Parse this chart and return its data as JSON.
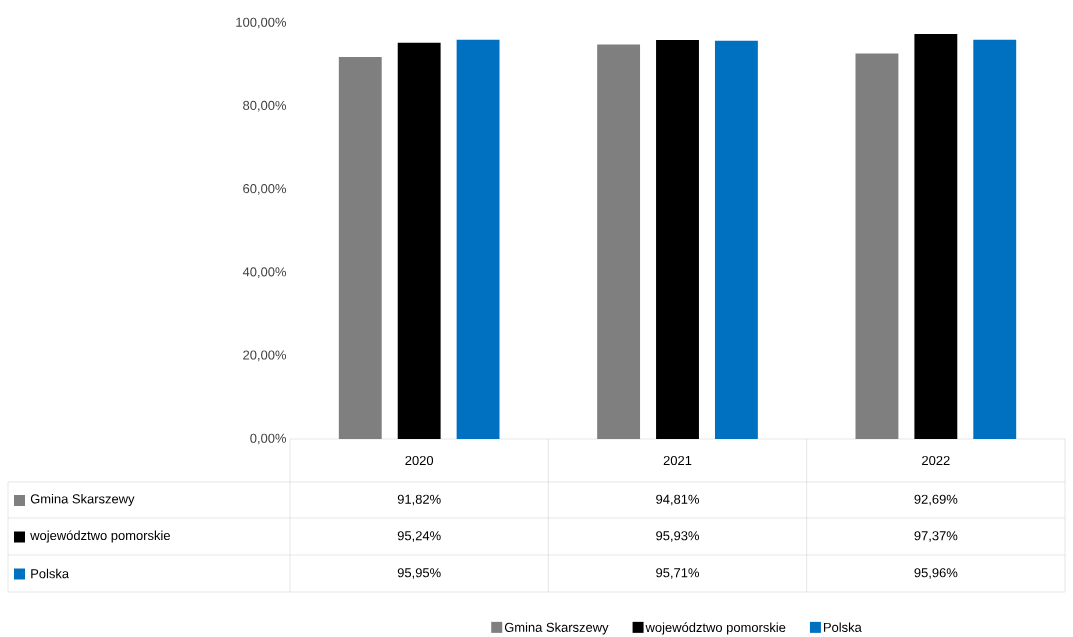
{
  "chart_data": {
    "type": "bar",
    "categories": [
      "2020",
      "2021",
      "2022"
    ],
    "series": [
      {
        "name": "Gmina Skarszewy",
        "color": "#7f7f7f",
        "values": [
          91.82,
          94.81,
          92.69
        ],
        "value_labels": [
          "91,82%",
          "94,81%",
          "92,69%"
        ]
      },
      {
        "name": "województwo pomorskie",
        "color": "#000000",
        "values": [
          95.24,
          95.93,
          97.37
        ],
        "value_labels": [
          "95,24%",
          "95,93%",
          "97,37%"
        ]
      },
      {
        "name": "Polska",
        "color": "#0070c0",
        "values": [
          95.95,
          95.71,
          95.96
        ],
        "value_labels": [
          "95,95%",
          "95,71%",
          "95,96%"
        ]
      }
    ],
    "ylim": [
      0,
      100
    ],
    "yticks": [
      {
        "value": 0,
        "label": "0,00%"
      },
      {
        "value": 20,
        "label": "20,00%"
      },
      {
        "value": 40,
        "label": "40,00%"
      },
      {
        "value": 60,
        "label": "60,00%"
      },
      {
        "value": 80,
        "label": "80,00%"
      },
      {
        "value": 100,
        "label": "100,00%"
      }
    ],
    "legend": "bottom"
  }
}
